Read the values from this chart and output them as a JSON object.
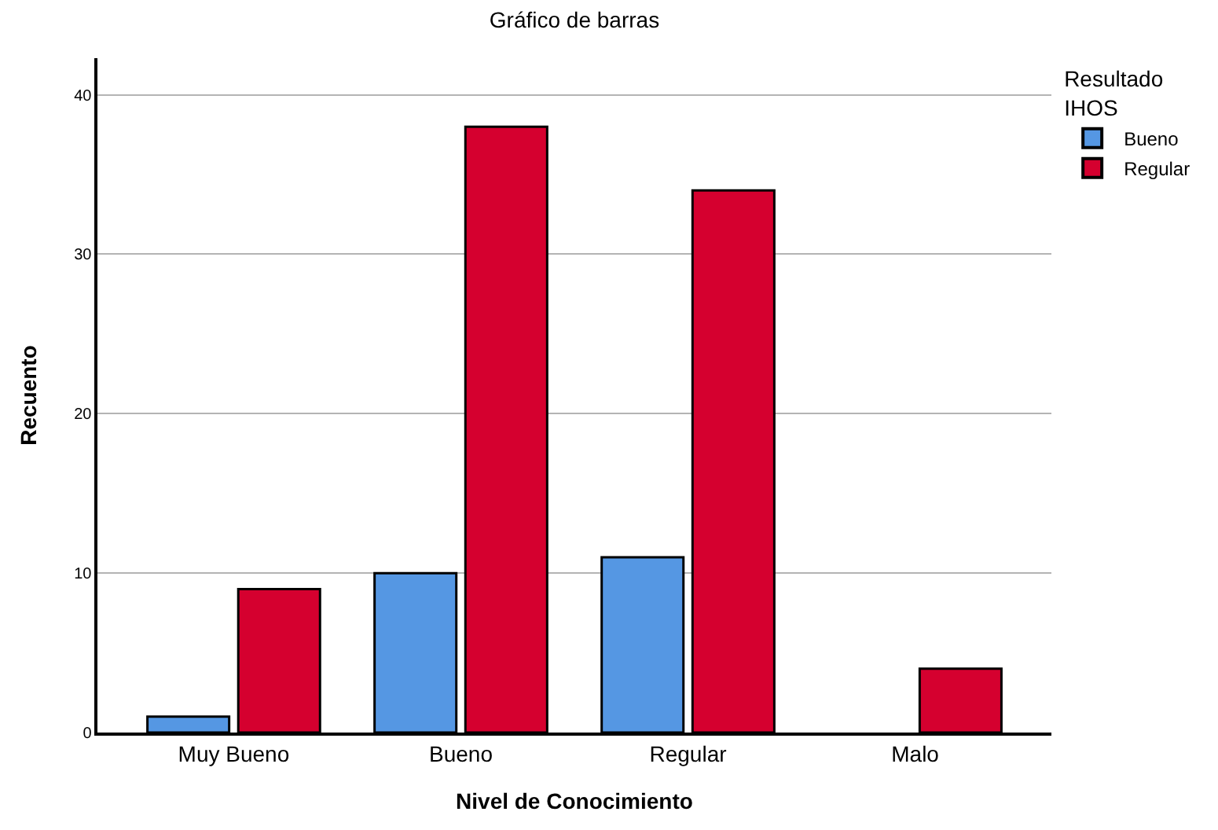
{
  "chart_data": {
    "type": "bar",
    "title": "Gráfico de barras",
    "xlabel": "Nivel de Conocimiento",
    "ylabel": "Recuento",
    "legend_title": "Resultado\nIHOS",
    "categories": [
      "Muy Bueno",
      "Bueno",
      "Regular",
      "Malo"
    ],
    "series": [
      {
        "name": "Bueno",
        "color": "#5597e3",
        "values": [
          1,
          10,
          11,
          null
        ]
      },
      {
        "name": "Regular",
        "color": "#d5002f",
        "values": [
          9,
          38,
          34,
          4
        ]
      }
    ],
    "ylim": [
      0,
      42.3
    ],
    "yticks": [
      0,
      10,
      20,
      30,
      40
    ],
    "grid": "y",
    "legend": "top right"
  }
}
